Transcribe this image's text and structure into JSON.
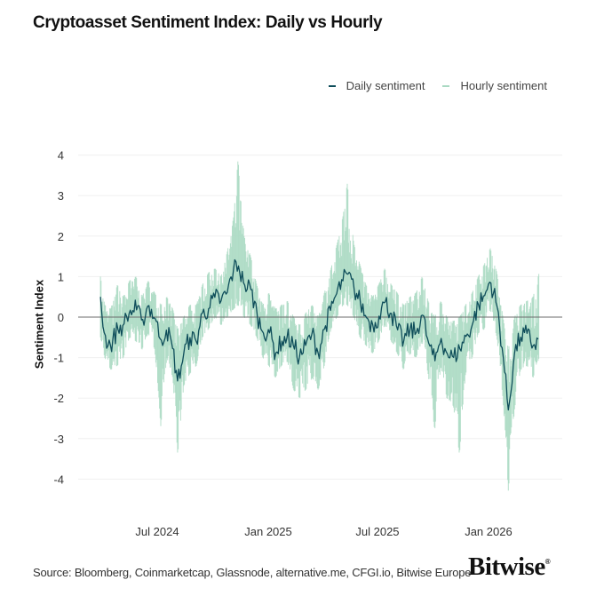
{
  "chart_data": {
    "type": "line",
    "title": "Cryptoasset Sentiment Index: Daily vs Hourly",
    "ylabel": "Sentiment Index",
    "xlabel": "",
    "ylim": [
      -4.4,
      4.4
    ],
    "yticks": [
      4,
      3,
      2,
      1,
      0,
      -1,
      -2,
      -3,
      -4
    ],
    "xticks": [
      {
        "date": "2024-07-01",
        "label": "Jul 2024"
      },
      {
        "date": "2025-01-01",
        "label": "Jan 2025"
      },
      {
        "date": "2025-07-01",
        "label": "Jul 2025"
      },
      {
        "date": "2026-01-01",
        "label": "Jan 2026"
      }
    ],
    "xlim": [
      "2024-03-29",
      "2026-03-26"
    ],
    "grid": true,
    "legend_position": "top-right",
    "series": [
      {
        "name": "Daily sentiment",
        "color": "#0e4d5a"
      },
      {
        "name": "Hourly sentiment",
        "color": "#a9d9c2"
      }
    ],
    "points": {
      "columns": [
        "date",
        "daily",
        "hourly_low",
        "hourly_high"
      ],
      "rows": [
        [
          "2024-03-29",
          0.5,
          -0.5,
          1.0
        ],
        [
          "2024-04-05",
          -0.5,
          -1.0,
          0.3
        ],
        [
          "2024-04-15",
          -0.7,
          -1.3,
          0.2
        ],
        [
          "2024-04-26",
          -0.3,
          -1.2,
          0.8
        ],
        [
          "2024-05-06",
          -0.2,
          -1.0,
          0.5
        ],
        [
          "2024-05-16",
          0.1,
          -0.5,
          0.9
        ],
        [
          "2024-05-27",
          0.2,
          -0.6,
          1.0
        ],
        [
          "2024-06-06",
          -0.1,
          -0.8,
          0.5
        ],
        [
          "2024-06-16",
          0.3,
          -0.4,
          0.9
        ],
        [
          "2024-06-27",
          0.0,
          -0.8,
          0.6
        ],
        [
          "2024-07-07",
          -0.6,
          -2.7,
          0.3
        ],
        [
          "2024-07-17",
          -0.3,
          -1.0,
          0.5
        ],
        [
          "2024-07-27",
          -0.8,
          -1.5,
          0.2
        ],
        [
          "2024-08-04",
          -1.6,
          -3.4,
          -0.3
        ],
        [
          "2024-08-14",
          -0.9,
          -1.7,
          0.0
        ],
        [
          "2024-08-24",
          -0.5,
          -1.4,
          0.3
        ],
        [
          "2024-09-04",
          -0.6,
          -1.2,
          0.3
        ],
        [
          "2024-09-14",
          0.1,
          -0.5,
          0.8
        ],
        [
          "2024-09-24",
          0.2,
          -0.3,
          1.1
        ],
        [
          "2024-10-05",
          0.5,
          0.0,
          1.2
        ],
        [
          "2024-10-15",
          0.4,
          -0.2,
          1.0
        ],
        [
          "2024-10-25",
          0.6,
          0.0,
          1.6
        ],
        [
          "2024-11-05",
          1.2,
          0.2,
          2.5
        ],
        [
          "2024-11-12",
          1.3,
          0.3,
          3.9
        ],
        [
          "2024-11-22",
          0.8,
          0.0,
          2.0
        ],
        [
          "2024-12-03",
          0.7,
          -0.2,
          1.5
        ],
        [
          "2024-12-13",
          0.1,
          -0.5,
          0.8
        ],
        [
          "2024-12-23",
          -0.4,
          -1.0,
          0.3
        ],
        [
          "2025-01-02",
          -0.3,
          -1.2,
          0.6
        ],
        [
          "2025-01-13",
          -0.9,
          -1.5,
          0.2
        ],
        [
          "2025-01-23",
          -0.6,
          -1.2,
          0.3
        ],
        [
          "2025-02-02",
          -0.5,
          -1.1,
          0.4
        ],
        [
          "2025-02-12",
          -0.7,
          -1.8,
          0.0
        ],
        [
          "2025-02-22",
          -1.0,
          -2.0,
          -0.2
        ],
        [
          "2025-03-04",
          -0.7,
          -1.8,
          0.1
        ],
        [
          "2025-03-15",
          -0.4,
          -1.5,
          0.3
        ],
        [
          "2025-03-25",
          -0.9,
          -1.8,
          0.0
        ],
        [
          "2025-04-04",
          -0.3,
          -1.2,
          0.6
        ],
        [
          "2025-04-15",
          0.2,
          -0.3,
          1.2
        ],
        [
          "2025-04-25",
          0.6,
          0.0,
          1.8
        ],
        [
          "2025-05-05",
          0.9,
          0.3,
          2.5
        ],
        [
          "2025-05-12",
          1.1,
          0.3,
          3.3
        ],
        [
          "2025-05-23",
          0.7,
          0.0,
          1.8
        ],
        [
          "2025-06-02",
          0.4,
          -0.5,
          1.3
        ],
        [
          "2025-06-12",
          0.0,
          -0.7,
          0.8
        ],
        [
          "2025-06-23",
          -0.2,
          -0.9,
          0.5
        ],
        [
          "2025-07-03",
          0.0,
          -0.6,
          0.8
        ],
        [
          "2025-07-13",
          0.4,
          -0.2,
          1.2
        ],
        [
          "2025-07-24",
          0.1,
          -0.6,
          0.8
        ],
        [
          "2025-08-03",
          -0.3,
          -0.9,
          0.6
        ],
        [
          "2025-08-13",
          -0.6,
          -1.3,
          0.3
        ],
        [
          "2025-08-24",
          -0.3,
          -0.9,
          0.5
        ],
        [
          "2025-09-03",
          -0.4,
          -1.0,
          0.6
        ],
        [
          "2025-09-13",
          0.1,
          -0.6,
          1.0
        ],
        [
          "2025-09-23",
          -0.6,
          -1.4,
          0.4
        ],
        [
          "2025-10-04",
          -1.1,
          -2.8,
          0.0
        ],
        [
          "2025-10-14",
          -0.5,
          -1.2,
          0.4
        ],
        [
          "2025-10-24",
          -0.9,
          -2.0,
          0.0
        ],
        [
          "2025-11-04",
          -1.0,
          -2.2,
          -0.1
        ],
        [
          "2025-11-14",
          -0.8,
          -3.4,
          0.0
        ],
        [
          "2025-11-24",
          -0.5,
          -1.4,
          0.3
        ],
        [
          "2025-12-05",
          -0.2,
          -1.0,
          0.6
        ],
        [
          "2025-12-15",
          0.3,
          -0.4,
          1.0
        ],
        [
          "2025-12-25",
          0.5,
          -0.3,
          1.3
        ],
        [
          "2026-01-04",
          0.9,
          0.2,
          1.7
        ],
        [
          "2026-01-15",
          0.3,
          -0.5,
          1.1
        ],
        [
          "2026-01-25",
          -0.9,
          -2.0,
          0.0
        ],
        [
          "2026-02-03",
          -2.3,
          -4.3,
          -0.8
        ],
        [
          "2026-02-13",
          -0.9,
          -2.3,
          0.0
        ],
        [
          "2026-02-23",
          -0.5,
          -1.3,
          0.3
        ],
        [
          "2026-03-06",
          -0.4,
          -1.2,
          0.4
        ],
        [
          "2026-03-16",
          -0.7,
          -1.5,
          0.5
        ],
        [
          "2026-03-26",
          -0.6,
          -1.0,
          1.1
        ]
      ]
    }
  },
  "footer": {
    "source": "Source: Bloomberg, Coinmarketcap, Glassnode, alternative.me, CFGI.io, Bitwise Europe",
    "logo_text": "Bitwise",
    "logo_mark": "®"
  }
}
